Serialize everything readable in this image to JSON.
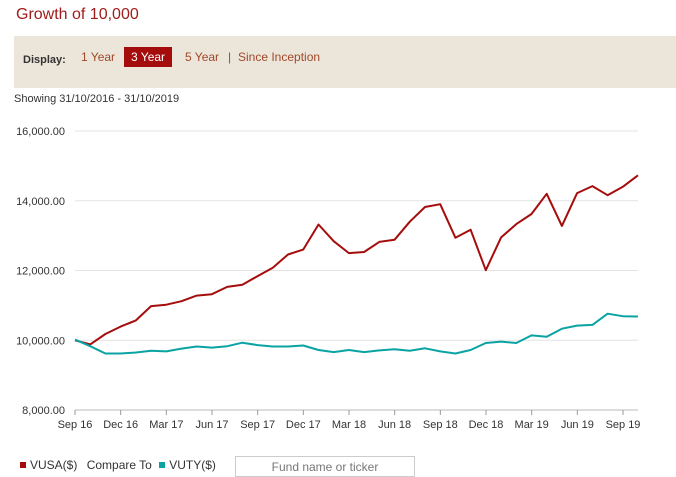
{
  "title": "Growth of 10,000",
  "display": {
    "label": "Display:",
    "options": [
      "1 Year",
      "3 Year",
      "5 Year",
      "Since Inception"
    ],
    "active_index": 1
  },
  "showing_range": "Showing 31/10/2016 - 31/10/2019",
  "legend": {
    "series1": "VUSA($)",
    "compare_label": "Compare To",
    "series2": "VUTY($)",
    "search_placeholder": "Fund name or ticker"
  },
  "colors": {
    "vusa": "#a50d0d",
    "vuty": "#0aa3a3"
  },
  "chart_data": {
    "type": "line",
    "x_ticks": [
      "Sep 16",
      "Dec 16",
      "Mar 17",
      "Jun 17",
      "Sep 17",
      "Dec 17",
      "Mar 18",
      "Jun 18",
      "Sep 18",
      "Dec 18",
      "Mar 19",
      "Jun 19",
      "Sep 19"
    ],
    "y_ticks": [
      "8,000.00",
      "10,000.00",
      "12,000.00",
      "14,000.00",
      "16,000.00"
    ],
    "ylim": [
      8000,
      16000
    ],
    "series": [
      {
        "name": "VUSA($)",
        "color": "#a50d0d",
        "values": [
          10000,
          9880,
          10180,
          10390,
          10570,
          10980,
          11020,
          11120,
          11280,
          11320,
          11530,
          11590,
          11840,
          12080,
          12460,
          12600,
          13320,
          12840,
          12500,
          12530,
          12820,
          12880,
          13400,
          13820,
          13900,
          12940,
          13170,
          12010,
          12950,
          13330,
          13620,
          14200,
          13280,
          14220,
          14420,
          14160,
          14400,
          14730
        ]
      },
      {
        "name": "VUTY($)",
        "color": "#0aa3a3",
        "values": [
          10020,
          9830,
          9620,
          9620,
          9650,
          9700,
          9680,
          9760,
          9820,
          9790,
          9830,
          9930,
          9860,
          9820,
          9820,
          9850,
          9720,
          9660,
          9720,
          9660,
          9710,
          9740,
          9700,
          9770,
          9680,
          9620,
          9720,
          9920,
          9960,
          9920,
          10140,
          10100,
          10330,
          10420,
          10440,
          10760,
          10690,
          10680
        ]
      }
    ]
  }
}
